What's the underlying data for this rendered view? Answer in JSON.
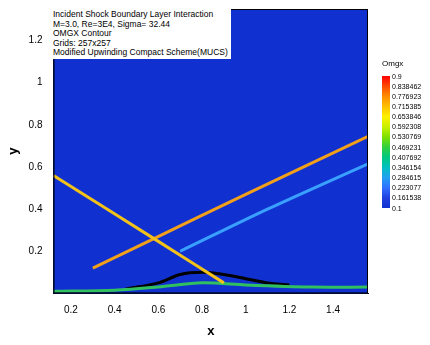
{
  "chart_data": {
    "type": "line",
    "title": "Incident Shock Boundary Layer Interaction",
    "annotations": [
      "M=3.0, Re=3E4, Sigma= 32.44",
      "OMGX  Contour",
      "Grids: 257x257",
      "Modified Upwinding Compact Scheme(MUCS)"
    ],
    "x_label": "x",
    "y_label": "y",
    "xlim": [
      0.12,
      1.56
    ],
    "xticks": [
      0.2,
      0.4,
      0.6,
      0.8,
      1,
      1.2,
      1.4
    ],
    "ylim": [
      0,
      1.35
    ],
    "yticks": [
      0.2,
      0.4,
      0.6,
      0.8,
      1,
      1.2
    ],
    "grid": false,
    "marker": "none",
    "series": [
      {
        "color": "#f2c21a",
        "x": [
          0.12,
          0.58,
          0.9
        ],
        "values": [
          0.56,
          0.26,
          0.05
        ]
      },
      {
        "color": "#f2a01a",
        "x": [
          0.3,
          0.58,
          1.0,
          1.57
        ],
        "values": [
          0.12,
          0.26,
          0.47,
          0.75
        ]
      },
      {
        "color": "#3aa0ff",
        "x": [
          0.7,
          1.1,
          1.57
        ],
        "values": [
          0.2,
          0.4,
          0.62
        ]
      },
      {
        "color": "#30c060",
        "x": [
          0.12,
          0.4,
          0.6,
          0.8,
          1.0,
          1.3,
          1.56
        ],
        "values": [
          0.01,
          0.015,
          0.03,
          0.05,
          0.04,
          0.03,
          0.03
        ]
      },
      {
        "color": "#000000",
        "x": [
          0.45,
          0.6,
          0.7,
          0.8,
          0.9,
          1.0,
          1.1,
          1.2
        ],
        "values": [
          0.02,
          0.05,
          0.09,
          0.1,
          0.09,
          0.07,
          0.05,
          0.04
        ]
      }
    ],
    "colorbar": {
      "title": "Omgx",
      "range": [
        0.1,
        0.9
      ],
      "ticks": [
        0.9,
        0.838462,
        0.776923,
        0.715385,
        0.653846,
        0.592308,
        0.530769,
        0.469231,
        0.407692,
        0.346154,
        0.284615,
        0.223077,
        0.161538,
        0.1
      ],
      "colors": [
        "#ff0000",
        "#ff4a00",
        "#ff8c00",
        "#ffc000",
        "#fff000",
        "#c8f000",
        "#80e000",
        "#30d040",
        "#00c880",
        "#00c0c0",
        "#20a0f0",
        "#3070ff",
        "#2040e0",
        "#1030d0"
      ]
    }
  }
}
